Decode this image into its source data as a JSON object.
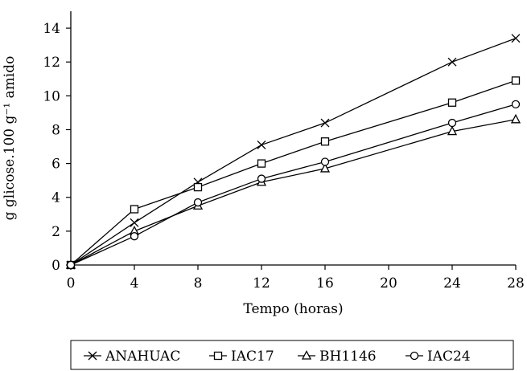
{
  "chart_data": {
    "type": "line",
    "title": "",
    "xlabel": "Tempo (horas)",
    "ylabel": "g glicose.100 g⁻¹ amido",
    "xlim": [
      0,
      28
    ],
    "ylim": [
      0,
      15
    ],
    "x_ticks": [
      0,
      4,
      8,
      12,
      16,
      20,
      24,
      28
    ],
    "y_ticks": [
      0,
      2,
      4,
      6,
      8,
      10,
      12,
      14
    ],
    "grid": false,
    "legend_position": "bottom",
    "series": [
      {
        "name": "ANAHUAC",
        "marker": "x",
        "x": [
          0,
          4,
          8,
          12,
          16,
          24,
          28
        ],
        "y": [
          0,
          2.5,
          4.9,
          7.1,
          8.4,
          12.0,
          13.4
        ]
      },
      {
        "name": "IAC17",
        "marker": "square",
        "x": [
          0,
          4,
          8,
          12,
          16,
          24,
          28
        ],
        "y": [
          0,
          3.3,
          4.6,
          6.0,
          7.3,
          9.6,
          10.9
        ]
      },
      {
        "name": "BH1146",
        "marker": "triangle",
        "x": [
          0,
          4,
          8,
          12,
          16,
          24,
          28
        ],
        "y": [
          0,
          2.0,
          3.5,
          4.9,
          5.7,
          7.9,
          8.6
        ]
      },
      {
        "name": "IAC24",
        "marker": "circle",
        "x": [
          0,
          4,
          8,
          12,
          16,
          24,
          28
        ],
        "y": [
          0,
          1.7,
          3.7,
          5.1,
          6.1,
          8.4,
          9.5
        ]
      }
    ],
    "colors": {
      "line": "#000000",
      "marker_fill": "#ffffff"
    }
  }
}
